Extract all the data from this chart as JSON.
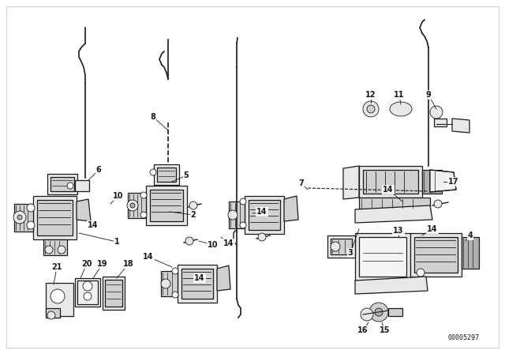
{
  "bg_color": "#ffffff",
  "line_color": "#1a1a1a",
  "fig_width": 6.4,
  "fig_height": 4.48,
  "dpi": 100,
  "watermark": "00005297",
  "border_color": "#bbbbbb"
}
